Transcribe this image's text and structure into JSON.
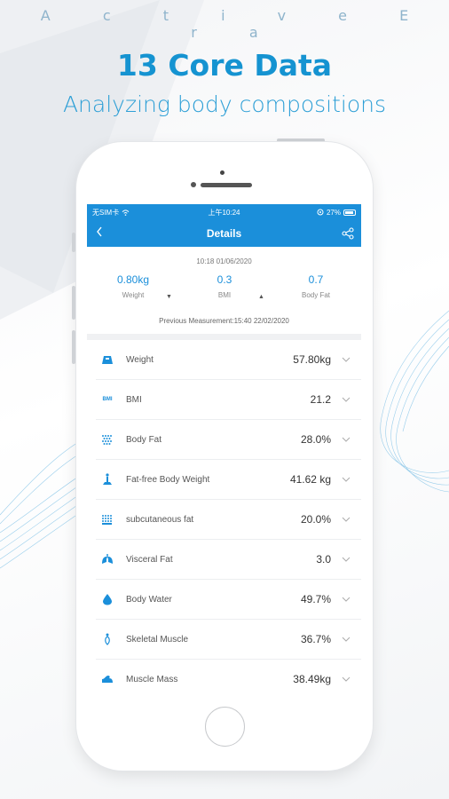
{
  "header": {
    "brand": "A c t i v e E r a",
    "headline": "13 Core Data",
    "subheadline": "Analyzing body compositions"
  },
  "status_bar": {
    "carrier": "无SIM卡",
    "time": "上午10:24",
    "battery": "27%"
  },
  "nav": {
    "title": "Details",
    "back_icon": "chevron-left-icon",
    "share_icon": "share-icon"
  },
  "summary": {
    "datetime": "10:18 01/06/2020",
    "metrics": [
      {
        "value": "0.80kg",
        "label": "Weight",
        "trend": "down"
      },
      {
        "value": "0.3",
        "label": "BMI",
        "trend": "up"
      },
      {
        "value": "0.7",
        "label": "Body Fat",
        "trend": "none"
      }
    ],
    "previous": "Previous Measurement:15:40 22/02/2020"
  },
  "rows": [
    {
      "label": "Weight",
      "value": "57.80kg",
      "icon": "scale-icon"
    },
    {
      "label": "BMI",
      "value": "21.2",
      "icon": "bmi-icon",
      "icon_text": "BMI"
    },
    {
      "label": "Body Fat",
      "value": "28.0%",
      "icon": "body-fat-icon"
    },
    {
      "label": "Fat-free Body Weight",
      "value": "41.62 kg",
      "icon": "fat-free-weight-icon"
    },
    {
      "label": "subcutaneous fat",
      "value": "20.0%",
      "icon": "subcutaneous-fat-icon"
    },
    {
      "label": "Visceral Fat",
      "value": "3.0",
      "icon": "lungs-icon"
    },
    {
      "label": "Body Water",
      "value": "49.7%",
      "icon": "water-drop-icon"
    },
    {
      "label": "Skeletal Muscle",
      "value": "36.7%",
      "icon": "skeletal-muscle-icon"
    },
    {
      "label": "Muscle Mass",
      "value": "38.49kg",
      "icon": "muscle-arm-icon"
    }
  ],
  "colors": {
    "primary": "#1b8fda",
    "headline": "#1593d1",
    "brand_text": "#8fb4cc"
  }
}
